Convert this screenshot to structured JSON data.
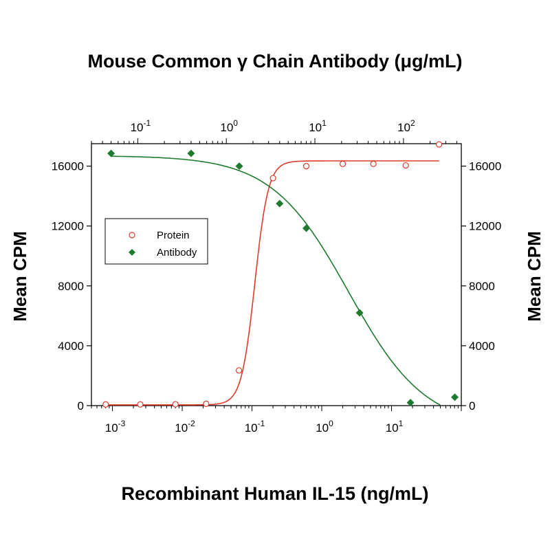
{
  "chart_data": {
    "type": "scatter",
    "title": "Mouse Common γ Chain Antibody (μg/mL)",
    "xlabel": "Recombinant Human IL-15 (ng/mL)",
    "ylabel": "Mean CPM",
    "ylabel_right": "Mean CPM",
    "x_scale": "log",
    "xlim": [
      0.0005,
      100
    ],
    "top_x_scale": "log",
    "top_xlim": [
      0.03,
      450
    ],
    "ylim": [
      0,
      17500
    ],
    "y_ticks": [
      0,
      4000,
      8000,
      12000,
      16000
    ],
    "y_tick_labels": [
      "0",
      "4000",
      "8000",
      "12000",
      "16000"
    ],
    "bottom_tick_exponents": [
      "-3",
      "-2",
      "-1",
      "0",
      "1"
    ],
    "bottom_tick_values": [
      0.001,
      0.01,
      0.1,
      1,
      10
    ],
    "top_tick_exponents": [
      "-1",
      "0",
      "1",
      "2"
    ],
    "top_tick_values": [
      0.1,
      1,
      10,
      100
    ],
    "tick_base": "10",
    "legend": {
      "position": "center-left",
      "entries": [
        "Protein",
        "Antibody"
      ]
    },
    "series": [
      {
        "name": "Protein",
        "axis": "bottom",
        "marker": "open-circle",
        "color": "#e0392b",
        "x": [
          0.0008,
          0.0025,
          0.008,
          0.022,
          0.065,
          0.2,
          0.6,
          2.0,
          5.5,
          16,
          48
        ],
        "y": [
          80,
          80,
          90,
          120,
          2350,
          15200,
          16000,
          16150,
          16150,
          16050,
          17450
        ],
        "fit": {
          "model": "4PL",
          "bottom": 50,
          "top": 16350,
          "ec50": 0.11,
          "hill": 4.5
        }
      },
      {
        "name": "Antibody",
        "axis": "top",
        "marker": "filled-diamond",
        "color": "#1e7a2e",
        "x": [
          0.05,
          0.4,
          1.4,
          4.0,
          8.0,
          32,
          120,
          380
        ],
        "y": [
          16850,
          16850,
          16000,
          13500,
          11850,
          6200,
          200,
          560
        ],
        "fit": {
          "model": "4PL",
          "bottom": -1500,
          "top": 16700,
          "ec50": 24,
          "hill": 1.0
        }
      }
    ]
  }
}
